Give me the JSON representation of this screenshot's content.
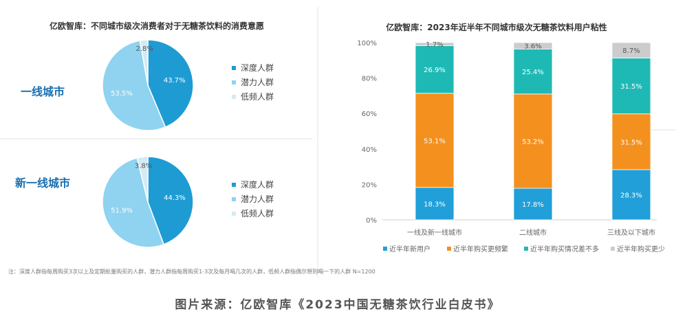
{
  "colors": {
    "deep": "#1f9bd3",
    "potential": "#8fd3f0",
    "low": "#d4eaf5",
    "new_users": "#219fd8",
    "frequent": "#f4901e",
    "same": "#1fb9b5",
    "less": "#cccccc"
  },
  "left_panel": {
    "title": "亿欧智库：不同城市级次消费者对于无糖茶饮料的消费意愿",
    "note": "注：深度人群指每周购买3次以上及定期批量购买的人群，潜力人群指每周购买1-3次及每月喝几次的人群，低频人群指偶尔想到喝一下的人群 N=1200"
  },
  "source": "图片来源：亿欧智库《2023中国无糖茶饮行业白皮书》",
  "chart_data": [
    {
      "type": "pie",
      "title": "一线城市",
      "slices": [
        {
          "name": "深度人群",
          "value": 43.7,
          "label": "43.7%"
        },
        {
          "name": "潜力人群",
          "value": 53.5,
          "label": "53.5%"
        },
        {
          "name": "低频人群",
          "value": 2.8,
          "label": "2.8%"
        }
      ],
      "legend": [
        "深度人群",
        "潜力人群",
        "低频人群"
      ]
    },
    {
      "type": "pie",
      "title": "新一线城市",
      "slices": [
        {
          "name": "深度人群",
          "value": 44.3,
          "label": "44.3%"
        },
        {
          "name": "潜力人群",
          "value": 51.9,
          "label": "51.9%"
        },
        {
          "name": "低频人群",
          "value": 3.8,
          "label": "3.8%"
        }
      ],
      "legend": [
        "深度人群",
        "潜力人群",
        "低频人群"
      ]
    },
    {
      "type": "bar",
      "stacked": true,
      "title": "亿欧智库：2023年近半年不同城市级次无糖茶饮料用户粘性",
      "categories": [
        "一线及新一线城市",
        "二线城市",
        "三线及以下城市"
      ],
      "ylim": [
        0,
        100
      ],
      "yticks": [
        "0%",
        "20%",
        "40%",
        "60%",
        "80%",
        "100%"
      ],
      "series": [
        {
          "name": "近半年新用户",
          "values": [
            18.3,
            17.8,
            28.3
          ],
          "labels": [
            "18.3%",
            "17.8%",
            "28.3%"
          ]
        },
        {
          "name": "近半年购买更频繁",
          "values": [
            53.1,
            53.2,
            31.5
          ],
          "labels": [
            "53.1%",
            "53.2%",
            "31.5%"
          ]
        },
        {
          "name": "近半年购买情况差不多",
          "values": [
            26.9,
            25.4,
            31.5
          ],
          "labels": [
            "26.9%",
            "25.4%",
            "31.5%"
          ]
        },
        {
          "name": "近半年购买更少",
          "values": [
            1.7,
            3.6,
            8.7
          ],
          "labels": [
            "1.7%",
            "3.6%",
            "8.7%"
          ]
        }
      ],
      "legend_position": "bottom"
    }
  ]
}
